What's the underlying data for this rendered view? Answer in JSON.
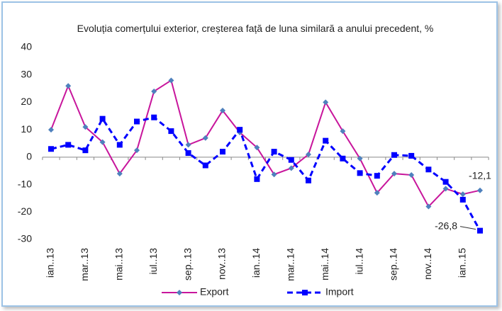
{
  "chart_data": {
    "type": "line",
    "title": "Evoluția comerțului exterior, creșterea față de luna similară a anului precedent, %",
    "categories": [
      "ian..13",
      null,
      "mar..13",
      null,
      "mai..13",
      null,
      "iul..13",
      null,
      "sep..13",
      null,
      "nov..13",
      null,
      "ian..14",
      null,
      "mar..14",
      null,
      "mai..14",
      null,
      "iul..14",
      null,
      "sep..14",
      null,
      "nov..14",
      null,
      "ian..15",
      null
    ],
    "series": [
      {
        "name": "Export",
        "color": "#c8169c",
        "marker": "diamond",
        "marker_color": "#4f81bd",
        "dashed": false,
        "values": [
          10,
          26,
          11,
          5.5,
          -6,
          2.5,
          24,
          28,
          4.5,
          7,
          17,
          9,
          3.5,
          -6.3,
          -4,
          1,
          20,
          9.5,
          -0.5,
          -13,
          -6,
          -6.5,
          -18,
          -11.5,
          -13.5,
          -12.1
        ],
        "value_labels": [
          null,
          null,
          null,
          null,
          null,
          null,
          null,
          null,
          null,
          null,
          null,
          null,
          null,
          null,
          null,
          null,
          null,
          null,
          null,
          null,
          null,
          null,
          null,
          null,
          null,
          "-12,1"
        ]
      },
      {
        "name": "Import",
        "color": "#0000ff",
        "marker": "square",
        "marker_color": "#0000ff",
        "dashed": true,
        "values": [
          3,
          4.5,
          2.5,
          14,
          4.5,
          13,
          14.5,
          9.5,
          1.5,
          -3,
          2,
          10,
          -8,
          2,
          -1,
          -8.5,
          6,
          -0.5,
          -5.8,
          -6.8,
          0.8,
          0.5,
          -4.5,
          -9,
          -15.5,
          -26.8
        ],
        "value_labels": [
          null,
          null,
          null,
          null,
          null,
          null,
          null,
          null,
          null,
          null,
          null,
          null,
          null,
          null,
          null,
          null,
          null,
          null,
          null,
          null,
          null,
          null,
          null,
          null,
          null,
          "-26,8"
        ]
      }
    ],
    "ylim": [
      -30,
      40
    ],
    "yticks": [
      -30,
      -20,
      -10,
      0,
      10,
      20,
      30,
      40
    ],
    "grid": false,
    "legend": "bottom"
  }
}
